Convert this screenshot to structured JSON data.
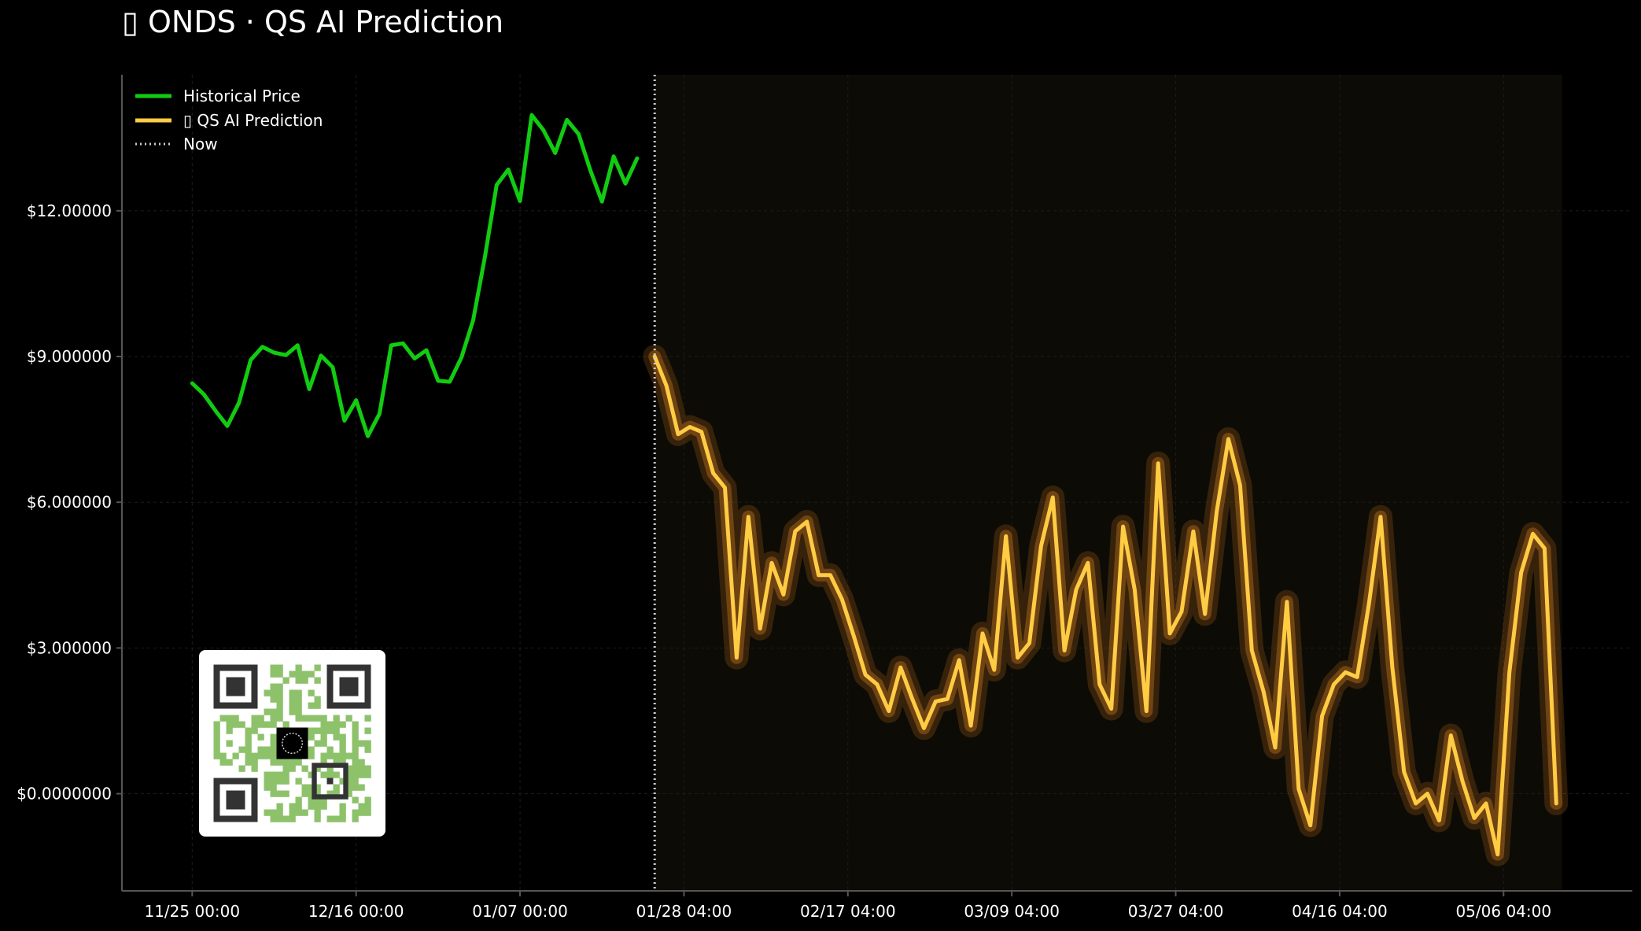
{
  "title": "▯ ONDS · QS AI Prediction",
  "colors": {
    "background": "#000000",
    "historical": "#11cc11",
    "prediction": "#ffcc44",
    "prediction_glow": "#c8781e",
    "now_line": "#cccccc",
    "forecast_region": "#0d0b05",
    "axis": "#555555",
    "grid": "#1c1c1c"
  },
  "chart_data": {
    "type": "line",
    "title": "▯ ONDS · QS AI Prediction",
    "xlabel": "",
    "ylabel": "",
    "x_ticks": [
      "11/25 00:00",
      "12/16 00:00",
      "01/07 00:00",
      "01/28 04:00",
      "02/17 04:00",
      "03/09 04:00",
      "03/27 04:00",
      "04/16 04:00",
      "05/06 04:00"
    ],
    "x_tick_index": [
      0,
      14,
      28,
      42,
      56,
      70,
      84,
      98,
      112
    ],
    "y_ticks": [
      "$0.0000000",
      "$3.000000",
      "$6.000000",
      "$9.000000",
      "$12.00000"
    ],
    "y_tick_values": [
      0,
      3,
      6,
      9,
      12
    ],
    "ylim": [
      -2.0,
      14.8
    ],
    "xlim": [
      -6,
      123
    ],
    "grid": true,
    "legend_position": "top-left",
    "legend": [
      "Historical Price",
      "▯ QS AI Prediction",
      "Now"
    ],
    "now_index": 39.5,
    "forecast_region_end": 117,
    "series": [
      {
        "name": "Historical Price",
        "start_index": 0,
        "values": [
          8.45,
          8.22,
          7.88,
          7.57,
          8.05,
          8.93,
          9.2,
          9.08,
          9.03,
          9.23,
          8.33,
          9.02,
          8.78,
          7.68,
          8.1,
          7.36,
          7.82,
          9.23,
          9.27,
          8.96,
          9.13,
          8.5,
          8.48,
          8.98,
          9.75,
          11.05,
          12.53,
          12.85,
          12.2,
          13.97,
          13.66,
          13.19,
          13.87,
          13.58,
          12.84,
          12.19,
          13.12,
          12.56,
          13.08
        ]
      },
      {
        "name": "▯ QS AI Prediction",
        "start_index": 39.5,
        "values": [
          9.0,
          8.4,
          7.4,
          7.55,
          7.45,
          6.6,
          6.3,
          2.8,
          5.7,
          3.4,
          4.75,
          4.1,
          5.4,
          5.6,
          4.5,
          4.5,
          4.0,
          3.25,
          2.45,
          2.25,
          1.7,
          2.6,
          1.95,
          1.35,
          1.9,
          1.95,
          2.75,
          1.4,
          3.3,
          2.55,
          5.3,
          2.8,
          3.1,
          5.1,
          6.1,
          2.95,
          4.2,
          4.75,
          2.25,
          1.75,
          5.5,
          4.2,
          1.7,
          6.8,
          3.3,
          3.75,
          5.4,
          3.7,
          5.8,
          7.3,
          6.35,
          2.95,
          2.1,
          0.95,
          3.95,
          0.1,
          -0.65,
          1.6,
          2.25,
          2.5,
          2.4,
          3.9,
          5.7,
          2.6,
          0.45,
          -0.2,
          0.0,
          -0.55,
          1.2,
          0.25,
          -0.5,
          -0.2,
          -1.25,
          2.5,
          4.55,
          5.35,
          5.05,
          -0.2
        ]
      }
    ]
  },
  "qr_code": {
    "icon": "qr-code-icon",
    "center_icon": "logo-icon"
  }
}
